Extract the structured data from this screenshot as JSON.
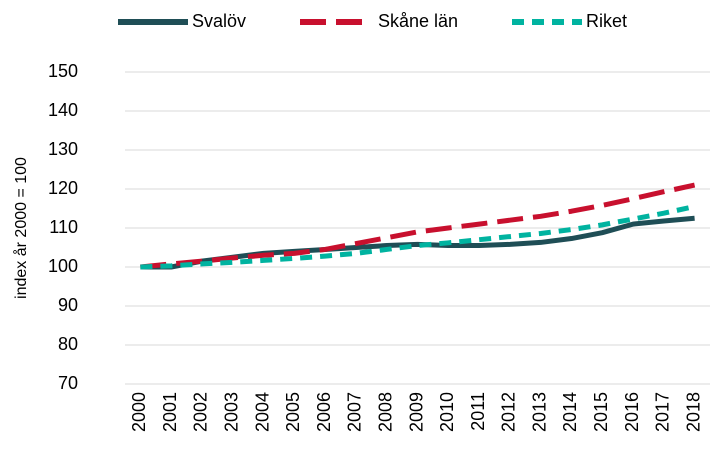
{
  "chart_data": {
    "type": "line",
    "y_label": "index år 2000 = 100",
    "categories": [
      "2000",
      "2001",
      "2002",
      "2003",
      "2004",
      "2005",
      "2006",
      "2007",
      "2008",
      "2009",
      "2010",
      "2011",
      "2012",
      "2013",
      "2014",
      "2015",
      "2016",
      "2017",
      "2018"
    ],
    "series": [
      {
        "name": "Svalöv",
        "color": "#1f4e56",
        "dash": "solid",
        "values": [
          100,
          100,
          101.5,
          102.5,
          103.5,
          104,
          104.5,
          105,
          105.5,
          105.8,
          105.5,
          105.5,
          105.8,
          106.3,
          107.3,
          108.8,
          111,
          111.8,
          112.5
        ]
      },
      {
        "name": "Skåne län",
        "color": "#c8102e",
        "dash": "long",
        "values": [
          100,
          100.8,
          101.5,
          102.3,
          103,
          103.5,
          104.5,
          106,
          107.5,
          109,
          110,
          111,
          112,
          113,
          114.3,
          115.8,
          117.5,
          119.3,
          121
        ]
      },
      {
        "name": "Riket",
        "color": "#00b3a0",
        "dash": "short",
        "values": [
          100,
          100.3,
          100.8,
          101.2,
          101.7,
          102.2,
          102.8,
          103.5,
          104.5,
          105.5,
          106.2,
          107,
          107.8,
          108.6,
          109.6,
          110.8,
          112.3,
          113.8,
          115.5
        ]
      }
    ],
    "ylim": [
      70,
      150
    ],
    "yticks": [
      70,
      80,
      90,
      100,
      110,
      120,
      130,
      140,
      150
    ],
    "grid": true,
    "legend": "top"
  }
}
